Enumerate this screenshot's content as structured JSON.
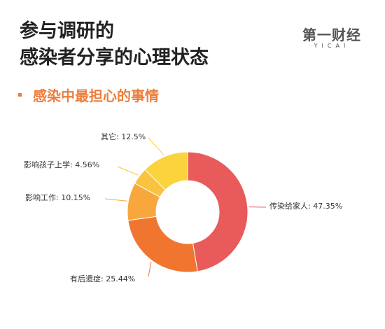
{
  "header": {
    "title_line1": "参与调研的",
    "title_line2": "感染者分享的心理状态",
    "logo_main": "第一财经",
    "logo_sub": "YICAI",
    "subtitle": "感染中最担心的事情"
  },
  "chart_data": {
    "type": "pie",
    "donut": true,
    "title": "感染中最担心的事情",
    "slices": [
      {
        "label": "传染给家人",
        "value": 47.35,
        "display": "传染给家人: 47.35%",
        "color": "#e95a5a"
      },
      {
        "label": "有后遗症",
        "value": 25.44,
        "display": "有后遗症: 25.44%",
        "color": "#f0762f"
      },
      {
        "label": "影响工作",
        "value": 10.15,
        "display": "影响工作: 10.15%",
        "color": "#f7a73b"
      },
      {
        "label": "影响孩子上学",
        "value": 4.56,
        "display": "影响孩子上学: 4.56%",
        "color": "#f9c23f"
      },
      {
        "label": "其它",
        "value": 12.5,
        "display": "其它: 12.5%",
        "color": "#fbd33d"
      }
    ]
  }
}
